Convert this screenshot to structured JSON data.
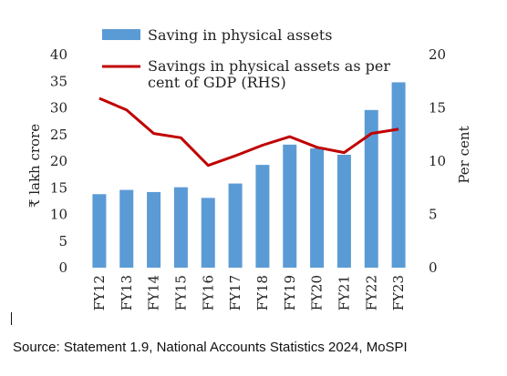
{
  "chart_data": {
    "type": "bar+line",
    "categories": [
      "FY12",
      "FY13",
      "FY14",
      "FY15",
      "FY16",
      "FY17",
      "FY18",
      "FY19",
      "FY20",
      "FY21",
      "FY22",
      "FY23"
    ],
    "series": [
      {
        "name": "Saving in physical assets",
        "type": "bar",
        "axis": "left",
        "color": "#5b9bd5",
        "values": [
          13.8,
          14.6,
          14.2,
          15.1,
          13.1,
          15.8,
          19.3,
          23.1,
          22.4,
          21.2,
          29.6,
          34.8
        ]
      },
      {
        "name_lines": [
          "Savings in physical assets as per",
          "cent of GDP (RHS)"
        ],
        "type": "line",
        "axis": "right",
        "color": "#c00000",
        "values": [
          15.9,
          14.8,
          12.6,
          12.2,
          9.6,
          10.5,
          11.5,
          12.3,
          11.3,
          10.8,
          12.6,
          13.0
        ]
      }
    ],
    "y_left": {
      "label": "₹ lakh crore",
      "ticks": [
        "0",
        "5",
        "10",
        "15",
        "20",
        "25",
        "30",
        "35",
        "40"
      ],
      "ylim": [
        0,
        40
      ]
    },
    "y_right": {
      "label": "Per cent",
      "ticks": [
        "0",
        "5",
        "10",
        "15",
        "20"
      ],
      "ylim": [
        0,
        20
      ]
    },
    "grid": false,
    "legend_position": "top"
  },
  "source_text": "Source: Statement 1.9, National Accounts Statistics 2024, MoSPI"
}
